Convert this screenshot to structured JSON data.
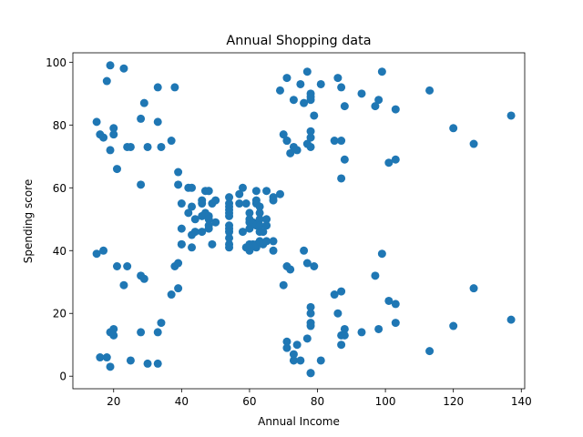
{
  "chart_data": {
    "type": "scatter",
    "title": "Annual Shopping data",
    "xlabel": "Annual Income",
    "ylabel": "Spending score",
    "xlim": [
      8,
      141
    ],
    "ylim": [
      -4,
      103
    ],
    "xticks": [
      20,
      40,
      60,
      80,
      100,
      120,
      140
    ],
    "yticks": [
      0,
      20,
      40,
      60,
      80,
      100
    ],
    "grid": false,
    "marker_color": "#1f77b4",
    "points": [
      [
        15,
        39
      ],
      [
        15,
        81
      ],
      [
        16,
        6
      ],
      [
        16,
        77
      ],
      [
        17,
        40
      ],
      [
        17,
        76
      ],
      [
        18,
        6
      ],
      [
        18,
        94
      ],
      [
        19,
        3
      ],
      [
        19,
        72
      ],
      [
        19,
        14
      ],
      [
        19,
        99
      ],
      [
        20,
        15
      ],
      [
        20,
        77
      ],
      [
        20,
        13
      ],
      [
        20,
        79
      ],
      [
        21,
        35
      ],
      [
        21,
        66
      ],
      [
        23,
        29
      ],
      [
        23,
        98
      ],
      [
        24,
        35
      ],
      [
        24,
        73
      ],
      [
        25,
        5
      ],
      [
        25,
        73
      ],
      [
        28,
        14
      ],
      [
        28,
        82
      ],
      [
        28,
        32
      ],
      [
        28,
        61
      ],
      [
        29,
        31
      ],
      [
        29,
        87
      ],
      [
        30,
        4
      ],
      [
        30,
        73
      ],
      [
        33,
        4
      ],
      [
        33,
        92
      ],
      [
        33,
        14
      ],
      [
        33,
        81
      ],
      [
        34,
        17
      ],
      [
        34,
        73
      ],
      [
        37,
        26
      ],
      [
        37,
        75
      ],
      [
        38,
        35
      ],
      [
        38,
        92
      ],
      [
        39,
        36
      ],
      [
        39,
        61
      ],
      [
        39,
        28
      ],
      [
        39,
        65
      ],
      [
        40,
        55
      ],
      [
        40,
        47
      ],
      [
        40,
        42
      ],
      [
        40,
        42
      ],
      [
        42,
        52
      ],
      [
        42,
        60
      ],
      [
        43,
        54
      ],
      [
        43,
        60
      ],
      [
        43,
        45
      ],
      [
        43,
        41
      ],
      [
        44,
        50
      ],
      [
        44,
        46
      ],
      [
        46,
        51
      ],
      [
        46,
        46
      ],
      [
        46,
        56
      ],
      [
        46,
        55
      ],
      [
        47,
        52
      ],
      [
        47,
        59
      ],
      [
        48,
        51
      ],
      [
        48,
        59
      ],
      [
        48,
        50
      ],
      [
        48,
        48
      ],
      [
        48,
        59
      ],
      [
        48,
        47
      ],
      [
        49,
        55
      ],
      [
        49,
        42
      ],
      [
        50,
        49
      ],
      [
        50,
        56
      ],
      [
        54,
        47
      ],
      [
        54,
        54
      ],
      [
        54,
        53
      ],
      [
        54,
        48
      ],
      [
        54,
        52
      ],
      [
        54,
        42
      ],
      [
        54,
        51
      ],
      [
        54,
        55
      ],
      [
        54,
        41
      ],
      [
        54,
        44
      ],
      [
        54,
        57
      ],
      [
        54,
        46
      ],
      [
        57,
        58
      ],
      [
        57,
        55
      ],
      [
        58,
        60
      ],
      [
        58,
        46
      ],
      [
        59,
        55
      ],
      [
        59,
        41
      ],
      [
        60,
        49
      ],
      [
        60,
        40
      ],
      [
        60,
        42
      ],
      [
        60,
        52
      ],
      [
        60,
        47
      ],
      [
        60,
        50
      ],
      [
        61,
        42
      ],
      [
        61,
        49
      ],
      [
        62,
        41
      ],
      [
        62,
        48
      ],
      [
        62,
        59
      ],
      [
        62,
        55
      ],
      [
        62,
        56
      ],
      [
        62,
        42
      ],
      [
        63,
        50
      ],
      [
        63,
        46
      ],
      [
        63,
        43
      ],
      [
        63,
        48
      ],
      [
        63,
        52
      ],
      [
        63,
        54
      ],
      [
        64,
        42
      ],
      [
        64,
        46
      ],
      [
        65,
        48
      ],
      [
        65,
        50
      ],
      [
        65,
        43
      ],
      [
        65,
        59
      ],
      [
        67,
        43
      ],
      [
        67,
        57
      ],
      [
        67,
        56
      ],
      [
        67,
        40
      ],
      [
        69,
        58
      ],
      [
        69,
        91
      ],
      [
        70,
        29
      ],
      [
        70,
        77
      ],
      [
        71,
        35
      ],
      [
        71,
        95
      ],
      [
        71,
        11
      ],
      [
        71,
        75
      ],
      [
        71,
        9
      ],
      [
        71,
        75
      ],
      [
        72,
        34
      ],
      [
        72,
        71
      ],
      [
        73,
        5
      ],
      [
        73,
        88
      ],
      [
        73,
        7
      ],
      [
        73,
        73
      ],
      [
        74,
        10
      ],
      [
        74,
        72
      ],
      [
        75,
        5
      ],
      [
        75,
        93
      ],
      [
        76,
        40
      ],
      [
        76,
        87
      ],
      [
        77,
        12
      ],
      [
        77,
        97
      ],
      [
        77,
        36
      ],
      [
        77,
        74
      ],
      [
        78,
        22
      ],
      [
        78,
        90
      ],
      [
        78,
        17
      ],
      [
        78,
        88
      ],
      [
        78,
        20
      ],
      [
        78,
        76
      ],
      [
        78,
        16
      ],
      [
        78,
        89
      ],
      [
        78,
        1
      ],
      [
        78,
        78
      ],
      [
        78,
        1
      ],
      [
        78,
        73
      ],
      [
        79,
        35
      ],
      [
        79,
        83
      ],
      [
        81,
        5
      ],
      [
        81,
        93
      ],
      [
        85,
        26
      ],
      [
        85,
        75
      ],
      [
        86,
        20
      ],
      [
        86,
        95
      ],
      [
        87,
        27
      ],
      [
        87,
        63
      ],
      [
        87,
        13
      ],
      [
        87,
        75
      ],
      [
        87,
        10
      ],
      [
        87,
        92
      ],
      [
        88,
        13
      ],
      [
        88,
        86
      ],
      [
        88,
        15
      ],
      [
        88,
        69
      ],
      [
        93,
        14
      ],
      [
        93,
        90
      ],
      [
        97,
        32
      ],
      [
        97,
        86
      ],
      [
        98,
        15
      ],
      [
        98,
        88
      ],
      [
        99,
        39
      ],
      [
        99,
        97
      ],
      [
        101,
        24
      ],
      [
        101,
        68
      ],
      [
        103,
        17
      ],
      [
        103,
        85
      ],
      [
        103,
        23
      ],
      [
        103,
        69
      ],
      [
        113,
        8
      ],
      [
        113,
        91
      ],
      [
        120,
        16
      ],
      [
        120,
        79
      ],
      [
        126,
        28
      ],
      [
        126,
        74
      ],
      [
        137,
        18
      ],
      [
        137,
        83
      ]
    ]
  }
}
